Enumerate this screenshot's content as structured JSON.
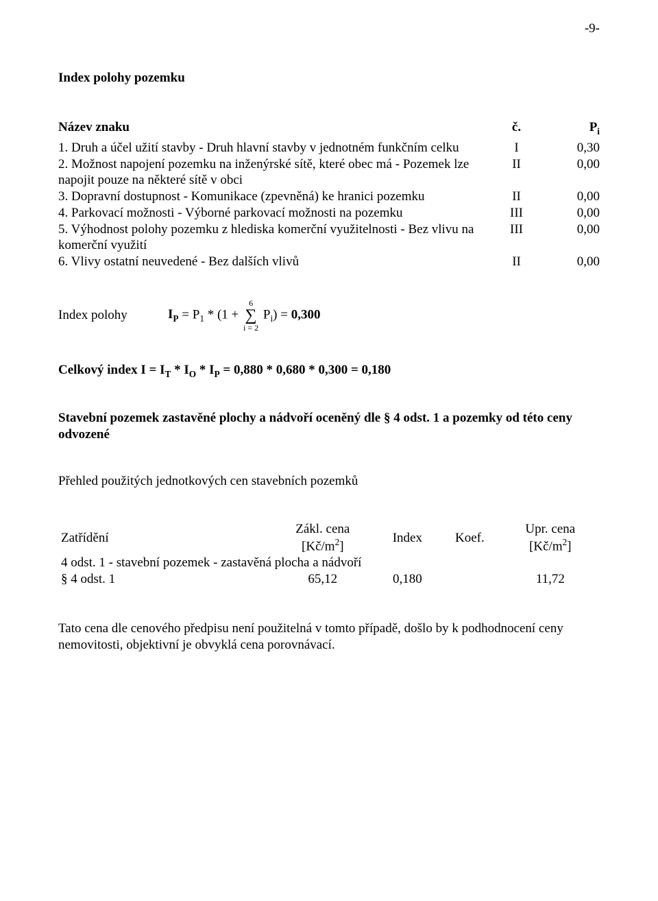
{
  "page_number": "-9-",
  "section_title": "Index polohy pozemku",
  "header": {
    "nazev": "Název znaku",
    "c": "č.",
    "pi_pre": "P",
    "pi_sub": "i"
  },
  "rows": [
    {
      "desc": "1. Druh a účel užití stavby - Druh hlavní stavby v jednotném funkčním celku",
      "c": "I",
      "p": "0,30"
    },
    {
      "desc": "2. Možnost napojení pozemku na inženýrské sítě, které obec má - Pozemek lze napojit pouze na některé sítě v obci",
      "c": "II",
      "p": "0,00"
    },
    {
      "desc": "3. Dopravní dostupnost - Komunikace (zpevněná) ke hranici pozemku",
      "c": "II",
      "p": "0,00"
    },
    {
      "desc": "4. Parkovací možnosti - Výborné parkovací možnosti na pozemku",
      "c": "III",
      "p": "0,00"
    },
    {
      "desc": "5. Výhodnost polohy pozemku z hlediska komerční využitelnosti - Bez vlivu na komerční využití",
      "c": "III",
      "p": "0,00"
    },
    {
      "desc": "6. Vlivy ostatní neuvedené - Bez dalších vlivů",
      "c": "II",
      "p": "0,00"
    }
  ],
  "formula": {
    "label": "Index polohy",
    "lhs_pre": "I",
    "lhs_sub": "P",
    "eq1": " = P",
    "p1sub": "1",
    "mid": " * (1 + ",
    "sum_top": "6",
    "sum_bot": "i = 2",
    "after_sum_pre": " P",
    "after_sum_sub": "i",
    "after_sum_post": ") = ",
    "result": "0,300"
  },
  "celkovy": {
    "pre": "Celkový index I = I",
    "t": "T",
    "m1": " * I",
    "o": "O",
    "m2": " * I",
    "p": "P",
    "rest": " = 0,880 * 0,680 * 0,300 = 0,180"
  },
  "stavebni": "Stavební pozemek zastavěné plochy a nádvoří oceněný dle § 4 odst. 1 a pozemky od této ceny odvozené",
  "prehled": "Přehled použitých jednotkových cen stavebních pozemků",
  "cen_header": {
    "zat": "Zatřídění",
    "zakl1": "Zákl. cena",
    "zakl2_pre": "[Kč/m",
    "zakl2_sup": "2",
    "zakl2_post": "]",
    "index": "Index",
    "koef": "Koef.",
    "upr1": "Upr. cena",
    "upr2_pre": "[Kč/m",
    "upr2_sup": "2",
    "upr2_post": "]"
  },
  "cen_group": "4 odst. 1 - stavební pozemek - zastavěná plocha a nádvoří",
  "cen_row": {
    "label": "§ 4 odst. 1",
    "zakl": "65,12",
    "index": "0,180",
    "koef": "",
    "upr": "11,72"
  },
  "note": "Tato cena dle cenového předpisu není použitelná v tomto případě, došlo by k podhodnocení ceny nemovitosti, objektivní je obvyklá cena porovnávací."
}
